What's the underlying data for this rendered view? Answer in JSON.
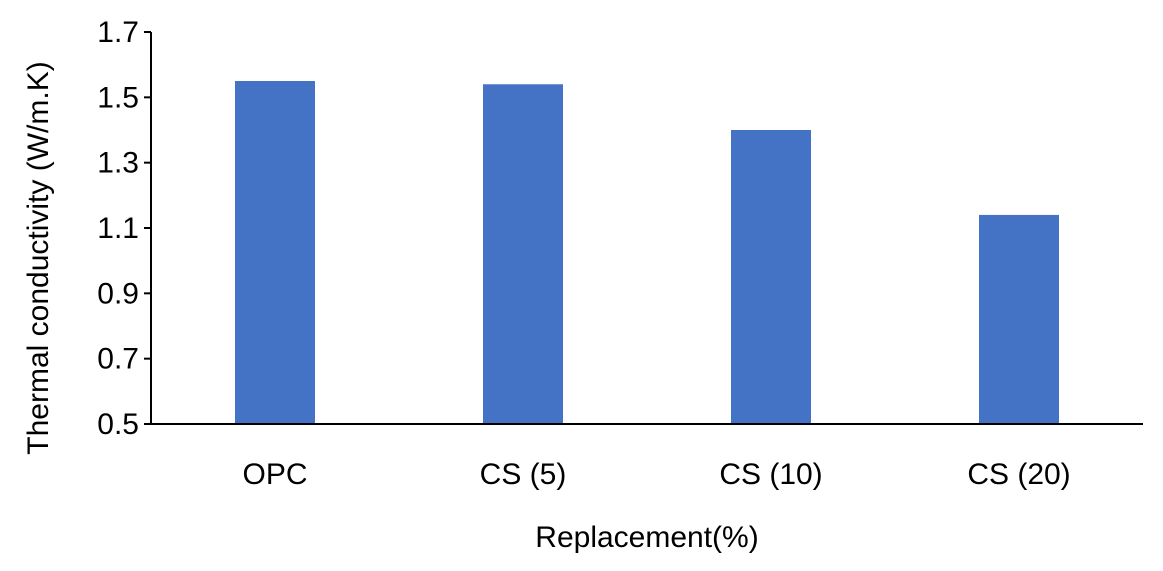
{
  "chart_data": {
    "type": "bar",
    "title": "",
    "xlabel": "Replacement(%)",
    "ylabel": "Thermal conductivity (W/m.K)",
    "categories": [
      "OPC",
      "CS (5)",
      "CS (10)",
      "CS (20)"
    ],
    "values": [
      1.55,
      1.54,
      1.4,
      1.14
    ],
    "ylim": [
      0.5,
      1.7
    ],
    "yticks": [
      "0.5",
      "0.7",
      "0.9",
      "1.1",
      "1.3",
      "1.5",
      "1.7"
    ],
    "grid": false,
    "legend": "none",
    "bar_color": "#4472C4"
  }
}
